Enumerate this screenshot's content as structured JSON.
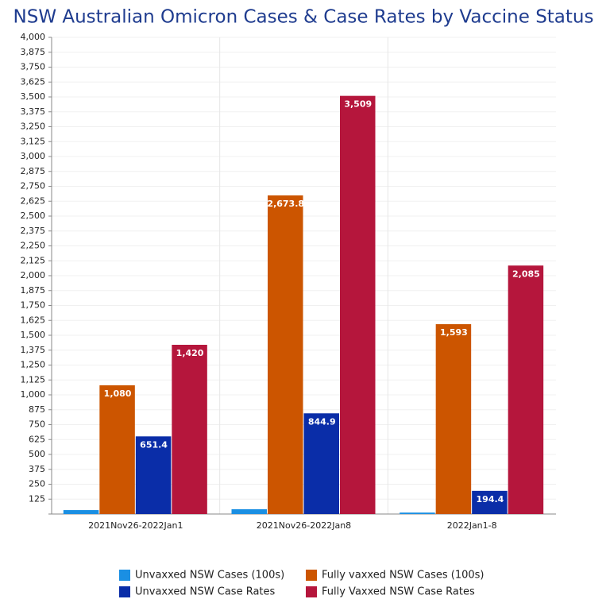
{
  "chart_data": {
    "type": "bar",
    "title": "NSW Australian Omicron Cases & Case Rates by Vaccine Status",
    "categories": [
      "2021Nov26-2022Jan1",
      "2021Nov26-2022Jan8",
      "2022Jan1-8"
    ],
    "series": [
      {
        "name": "Unvaxxed NSW Cases (100s)",
        "color": "#1a8fe3",
        "values": [
          33,
          40,
          12
        ]
      },
      {
        "name": "Fully vaxxed NSW Cases (100s)",
        "color": "#cc5500",
        "values": [
          1080,
          2673.8,
          1593
        ],
        "value_labels": [
          "1,080",
          "2,673.8",
          "1,593"
        ]
      },
      {
        "name": "Unvaxxed NSW Case Rates",
        "color": "#0a2da8",
        "values": [
          651.4,
          844.9,
          194.4
        ]
      },
      {
        "name": "Fully Vaxxed NSW Case Rates",
        "color": "#b5163c",
        "values": [
          1420,
          3509,
          2085
        ],
        "value_labels": [
          "1,420",
          "3,509",
          "2,085"
        ]
      }
    ],
    "ylim": [
      0,
      4000
    ],
    "yticks": [
      125,
      250,
      375,
      500,
      625,
      750,
      875,
      {
        "value": 1000,
        "label": "1,000"
      },
      {
        "value": 1125,
        "label": "1,125"
      },
      {
        "value": 1250,
        "label": "1,250"
      },
      {
        "value": 1375,
        "label": "1,375"
      },
      {
        "value": 1500,
        "label": "1,500"
      },
      {
        "value": 1625,
        "label": "1,625"
      },
      {
        "value": 1750,
        "label": "1,750"
      },
      {
        "value": 1875,
        "label": "1,875"
      },
      {
        "value": 2000,
        "label": "2,000"
      },
      {
        "value": 2125,
        "label": "2,125"
      },
      {
        "value": 2250,
        "label": "2,250"
      },
      {
        "value": 2375,
        "label": "2,375"
      },
      {
        "value": 2500,
        "label": "2,500"
      },
      {
        "value": 2625,
        "label": "2,625"
      },
      {
        "value": 2750,
        "label": "2,750"
      },
      {
        "value": 2875,
        "label": "2,875"
      },
      {
        "value": 3000,
        "label": "3,000"
      },
      {
        "value": 3125,
        "label": "3,125"
      },
      {
        "value": 3250,
        "label": "3,250"
      },
      {
        "value": 3375,
        "label": "3,375"
      },
      {
        "value": 3500,
        "label": "3,500"
      },
      {
        "value": 3625,
        "label": "3,625"
      },
      {
        "value": 3750,
        "label": "3,750"
      },
      {
        "value": 3875,
        "label": "3,875"
      },
      {
        "value": 4000,
        "label": "4,000"
      }
    ],
    "grid": true
  }
}
